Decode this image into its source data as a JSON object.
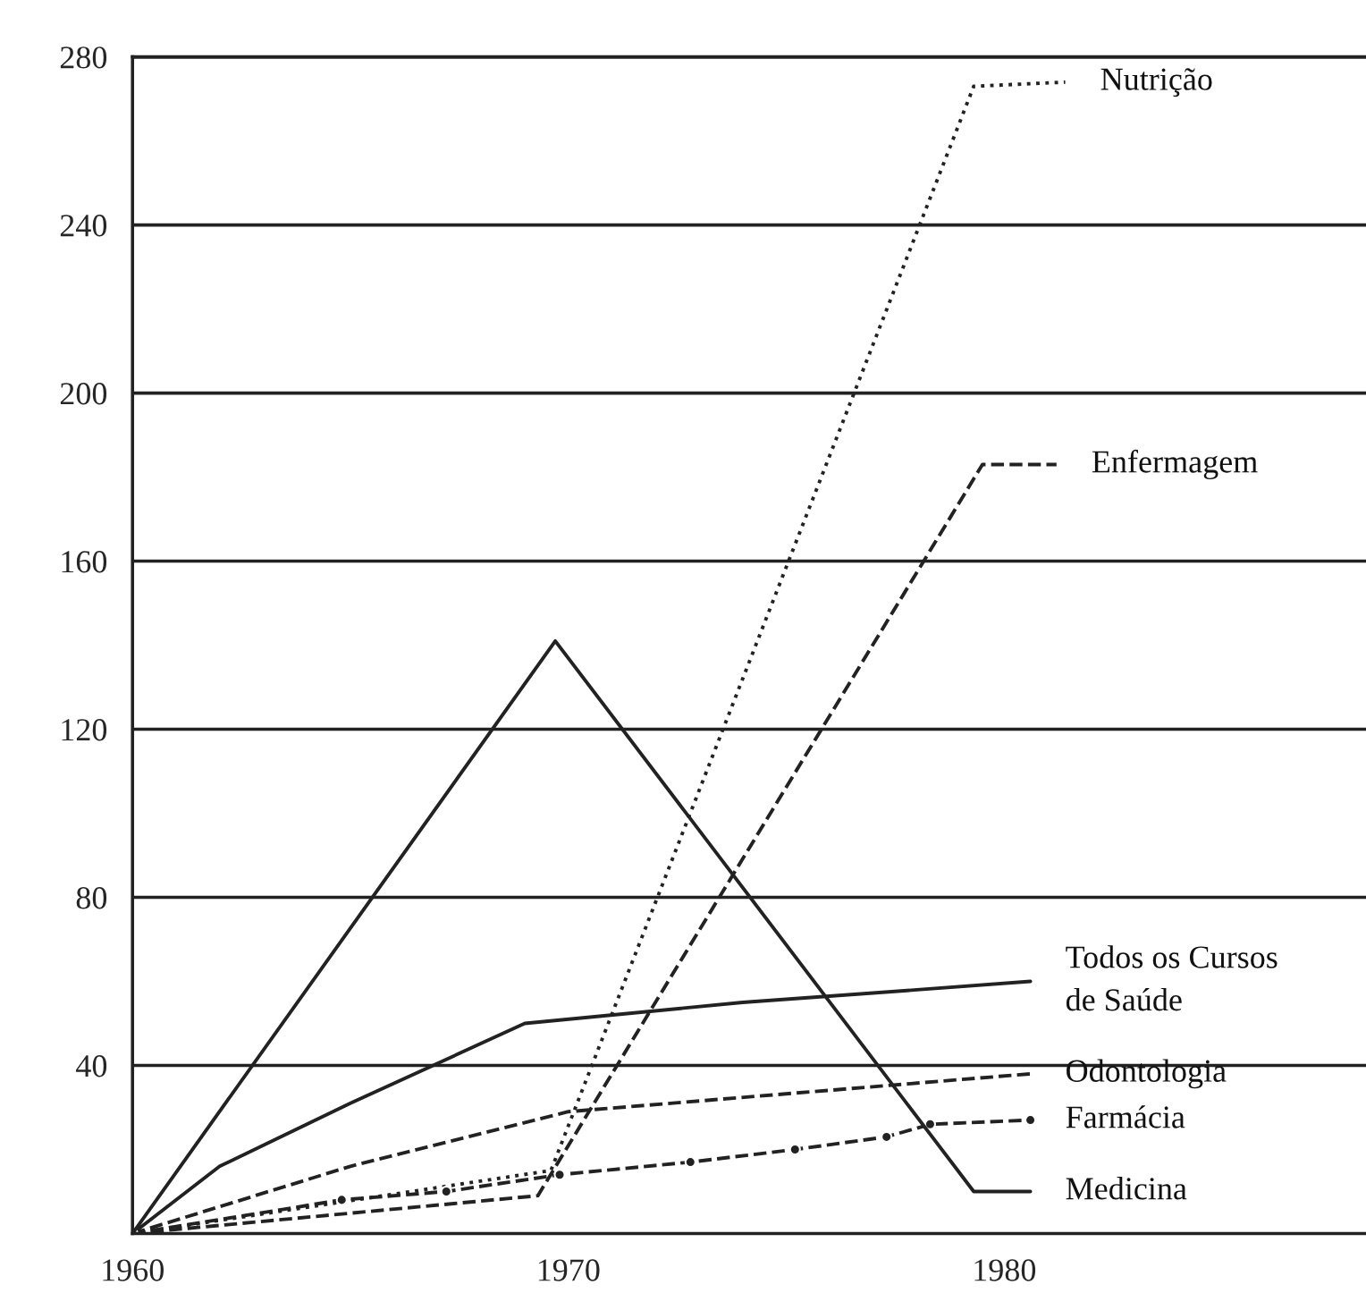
{
  "chart_data": {
    "type": "line",
    "xlim": [
      1960,
      1988.3
    ],
    "xticks": [
      1960,
      1970,
      1980
    ],
    "ylim": [
      0,
      280
    ],
    "yticks": [
      40,
      80,
      120,
      160,
      200,
      240,
      280
    ],
    "grid": "y",
    "legend": false,
    "series": [
      {
        "name": "Nutrição",
        "color": "#222222",
        "line_style": "dotted",
        "x": [
          1960,
          1969.6,
          1979.3,
          1981.4
        ],
        "values": [
          0,
          15,
          273,
          274
        ]
      },
      {
        "name": "Enfermagem",
        "color": "#222222",
        "line_style": "dashed",
        "x": [
          1960,
          1969.3,
          1979.5,
          1981.2
        ],
        "values": [
          0,
          9,
          183,
          183
        ]
      },
      {
        "name": "Todos os Cursos\nde Saúde",
        "color": "#222222",
        "line_style": "solid",
        "x": [
          1960,
          1962,
          1965,
          1969,
          1974,
          1978,
          1980.6
        ],
        "values": [
          0,
          16,
          31,
          50,
          55,
          58,
          60
        ]
      },
      {
        "name": "Odontologia",
        "color": "#222222",
        "line_style": "dashed",
        "x": [
          1960,
          1965,
          1970,
          1980.6
        ],
        "values": [
          0,
          16,
          29,
          38
        ]
      },
      {
        "name": "Farmácia",
        "color": "#222222",
        "line_style": "dashed",
        "marker": "circle",
        "x": [
          1960,
          1964.8,
          1967.2,
          1969.8,
          1972.8,
          1975.2,
          1977.3,
          1978.3,
          1980.6
        ],
        "values": [
          0,
          8,
          10,
          14,
          17,
          20,
          23,
          26,
          27
        ]
      },
      {
        "name": "Medicina",
        "color": "#222222",
        "line_style": "solid",
        "x": [
          1960,
          1969.7,
          1979.3,
          1980.6
        ],
        "values": [
          0,
          141,
          10,
          10
        ]
      }
    ]
  }
}
